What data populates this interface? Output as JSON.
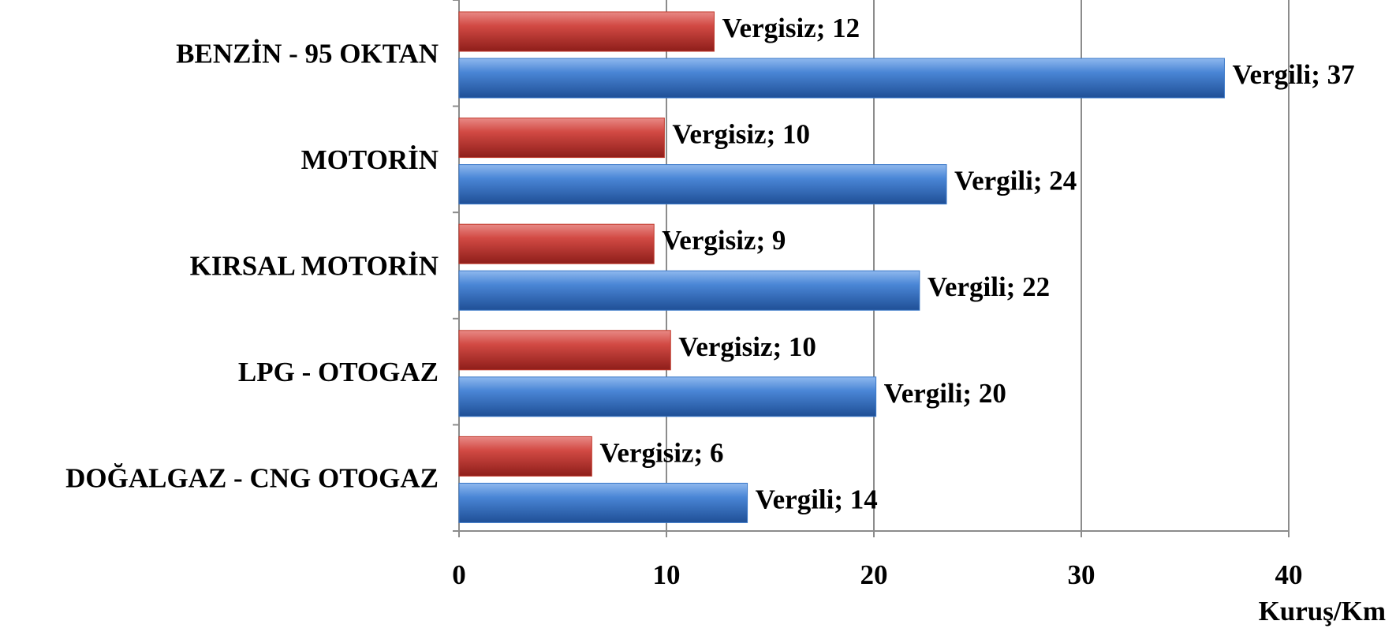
{
  "chart_data": {
    "type": "bar",
    "orientation": "horizontal",
    "categories": [
      "BENZİN - 95 OKTAN",
      "MOTORİN",
      "KIRSAL MOTORİN",
      "LPG - OTOGAZ",
      "DOĞALGAZ - CNG OTOGAZ"
    ],
    "series": [
      {
        "name": "Vergisiz",
        "color": "#c0392b",
        "values": [
          12.3,
          9.9,
          9.4,
          10.2,
          6.4
        ],
        "value_labels": [
          "Vergisiz; 12",
          "Vergisiz; 10",
          "Vergisiz; 9",
          "Vergisiz; 10",
          "Vergisiz; 6"
        ]
      },
      {
        "name": "Vergili",
        "color": "#3a78c8",
        "values": [
          36.9,
          23.5,
          22.2,
          20.1,
          13.9
        ],
        "value_labels": [
          "Vergili; 37",
          "Vergili; 24",
          "Vergili; 22",
          "Vergili; 20",
          "Vergili; 14"
        ]
      }
    ],
    "xlim": [
      0,
      40
    ],
    "xticks": [
      0,
      10,
      20,
      30,
      40
    ],
    "x_label": "Kuruş/Km",
    "grid": true
  }
}
